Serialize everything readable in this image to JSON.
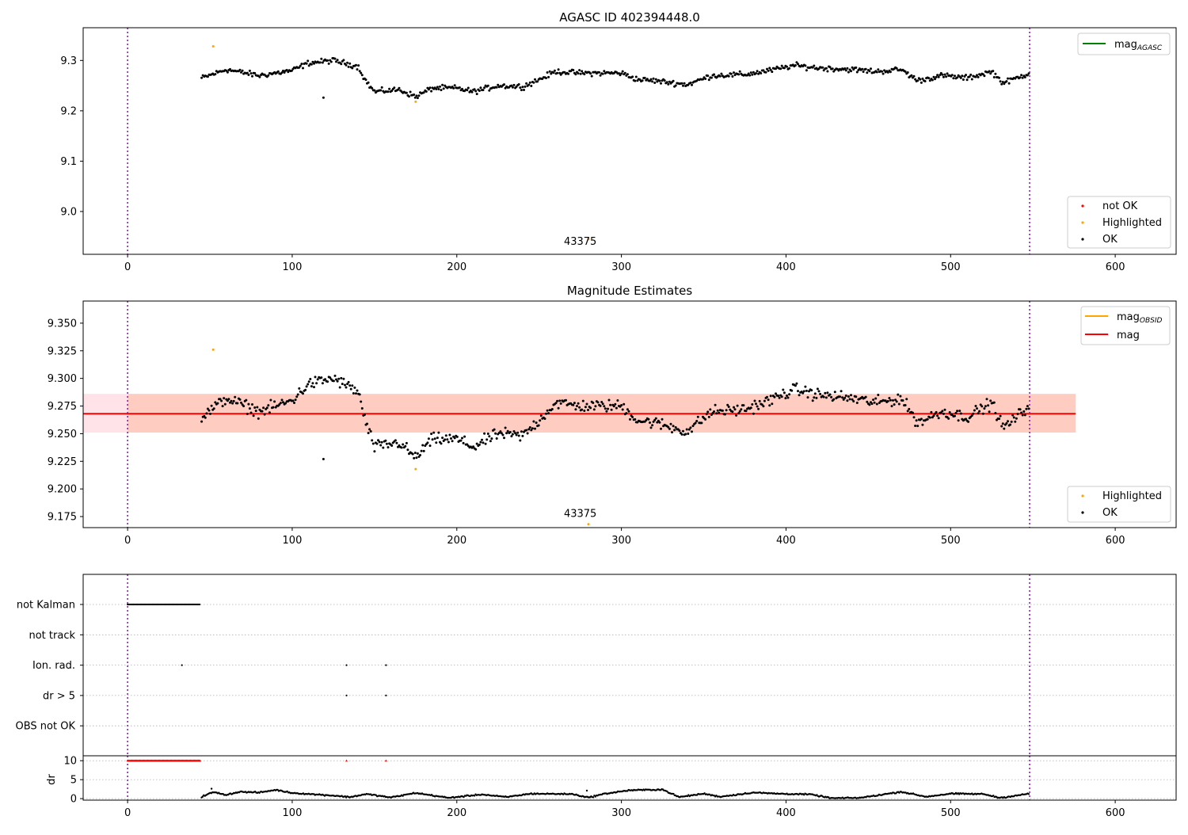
{
  "chart_data": [
    {
      "type": "scatter",
      "title": "AGASC ID 402394448.0",
      "xlim": [
        -27,
        637
      ],
      "ylim": [
        8.915,
        9.365
      ],
      "xticks": [
        0,
        100,
        200,
        300,
        400,
        500,
        600
      ],
      "yticks": [
        9.0,
        9.1,
        9.2,
        9.3
      ],
      "ytick_labels": [
        "9.0",
        "9.1",
        "9.2",
        "9.3"
      ],
      "vlines": [
        0,
        548
      ],
      "line_legend": {
        "label": "mag",
        "subscript": "AGASC",
        "color": "#008000"
      },
      "series": [
        {
          "name": "not OK",
          "color": "#ff0000",
          "points": []
        },
        {
          "name": "Highlighted",
          "color": "#ffa500",
          "points": [
            [
              52,
              9.328
            ],
            [
              175,
              9.218
            ],
            [
              280,
              8.945
            ]
          ]
        },
        {
          "name": "OK",
          "color": "#000000",
          "profile": [
            [
              45,
              9.265
            ],
            [
              60,
              9.282
            ],
            [
              80,
              9.27
            ],
            [
              100,
              9.28
            ],
            [
              110,
              9.295
            ],
            [
              125,
              9.3
            ],
            [
              140,
              9.288
            ],
            [
              145,
              9.258
            ],
            [
              150,
              9.238
            ],
            [
              165,
              9.242
            ],
            [
              175,
              9.228
            ],
            [
              185,
              9.245
            ],
            [
              200,
              9.245
            ],
            [
              210,
              9.238
            ],
            [
              225,
              9.25
            ],
            [
              240,
              9.248
            ],
            [
              250,
              9.262
            ],
            [
              260,
              9.278
            ],
            [
              275,
              9.275
            ],
            [
              300,
              9.275
            ],
            [
              310,
              9.262
            ],
            [
              320,
              9.26
            ],
            [
              340,
              9.252
            ],
            [
              355,
              9.27
            ],
            [
              375,
              9.272
            ],
            [
              390,
              9.28
            ],
            [
              405,
              9.29
            ],
            [
              420,
              9.285
            ],
            [
              440,
              9.282
            ],
            [
              455,
              9.278
            ],
            [
              470,
              9.282
            ],
            [
              480,
              9.26
            ],
            [
              495,
              9.27
            ],
            [
              510,
              9.265
            ],
            [
              525,
              9.278
            ],
            [
              532,
              9.255
            ],
            [
              540,
              9.265
            ],
            [
              548,
              9.275
            ]
          ],
          "x_from": 45,
          "x_to": 548,
          "step": 0.75,
          "noise": 0.008,
          "outliers": [
            [
              119,
              9.226
            ]
          ]
        }
      ],
      "annotations": [
        {
          "x": 275,
          "y": 8.92,
          "text": "43375"
        }
      ],
      "legend": [
        "not OK",
        "Highlighted",
        "OK"
      ]
    },
    {
      "type": "scatter",
      "title": "Magnitude Estimates",
      "xlim": [
        -27,
        637
      ],
      "ylim": [
        9.165,
        9.37
      ],
      "xticks": [
        0,
        100,
        200,
        300,
        400,
        500,
        600
      ],
      "yticks": [
        9.175,
        9.2,
        9.225,
        9.25,
        9.275,
        9.3,
        9.325,
        9.35
      ],
      "ytick_labels": [
        "9.175",
        "9.200",
        "9.225",
        "9.250",
        "9.275",
        "9.300",
        "9.325",
        "9.350"
      ],
      "vlines": [
        0,
        548
      ],
      "mag": {
        "value": 9.268,
        "band_low": 9.251,
        "band_high": 9.286,
        "x_end": 576,
        "color": "#ff0000"
      },
      "line_legend": [
        {
          "label": "mag",
          "subscript": "OBSID",
          "color": "#ffa500"
        },
        {
          "label": "mag",
          "subscript": "",
          "color": "#ff0000"
        }
      ],
      "series": [
        {
          "name": "Highlighted",
          "color": "#ffa500",
          "points": [
            [
              52,
              9.326
            ],
            [
              175,
              9.218
            ],
            [
              280,
              9.168
            ]
          ]
        },
        {
          "name": "OK",
          "color": "#000000",
          "profile": [
            [
              45,
              9.265
            ],
            [
              60,
              9.282
            ],
            [
              80,
              9.27
            ],
            [
              100,
              9.28
            ],
            [
              110,
              9.295
            ],
            [
              125,
              9.3
            ],
            [
              140,
              9.288
            ],
            [
              145,
              9.258
            ],
            [
              150,
              9.238
            ],
            [
              165,
              9.242
            ],
            [
              175,
              9.228
            ],
            [
              185,
              9.245
            ],
            [
              200,
              9.245
            ],
            [
              210,
              9.238
            ],
            [
              225,
              9.25
            ],
            [
              240,
              9.248
            ],
            [
              250,
              9.262
            ],
            [
              260,
              9.278
            ],
            [
              275,
              9.275
            ],
            [
              300,
              9.275
            ],
            [
              310,
              9.262
            ],
            [
              320,
              9.26
            ],
            [
              340,
              9.252
            ],
            [
              355,
              9.27
            ],
            [
              375,
              9.272
            ],
            [
              390,
              9.28
            ],
            [
              405,
              9.29
            ],
            [
              420,
              9.285
            ],
            [
              440,
              9.282
            ],
            [
              455,
              9.278
            ],
            [
              470,
              9.282
            ],
            [
              480,
              9.26
            ],
            [
              495,
              9.27
            ],
            [
              510,
              9.265
            ],
            [
              525,
              9.278
            ],
            [
              532,
              9.255
            ],
            [
              540,
              9.265
            ],
            [
              548,
              9.275
            ]
          ],
          "x_from": 45,
          "x_to": 548,
          "step": 0.75,
          "noise": 0.008,
          "outliers": [
            [
              119,
              9.227
            ]
          ]
        }
      ],
      "annotations": [
        {
          "x": 275,
          "y": 9.171,
          "text": "43375"
        }
      ],
      "legend": [
        "Highlighted",
        "OK"
      ]
    },
    {
      "type": "scatter",
      "title": "",
      "xlim": [
        -27,
        637
      ],
      "vlines": [
        0,
        548
      ],
      "flag_rows": [
        {
          "label": "not Kalman",
          "segments": [
            [
              0,
              44
            ]
          ],
          "points": []
        },
        {
          "label": "not track",
          "segments": [],
          "points": []
        },
        {
          "label": "Ion. rad.",
          "segments": [],
          "points": [
            33,
            133,
            157
          ]
        },
        {
          "label": "dr > 5",
          "segments": [],
          "points": [
            133,
            157
          ]
        },
        {
          "label": "OBS not OK",
          "segments": [],
          "points": []
        }
      ]
    },
    {
      "type": "scatter",
      "title": "",
      "xlim": [
        -27,
        637
      ],
      "ylim": [
        -0.4,
        11.3
      ],
      "ylabel": "dr",
      "xticks": [
        0,
        100,
        200,
        300,
        400,
        500,
        600
      ],
      "yticks": [
        0,
        5,
        10
      ],
      "ytick_labels": [
        "0",
        "5",
        "10"
      ],
      "vlines": [
        0,
        548
      ],
      "series": [
        {
          "name": "dr > 5",
          "color": "#ff0000",
          "x_from": 0,
          "x_to": 44,
          "step": 0.4,
          "y": 10,
          "points": [
            [
              133,
              10
            ],
            [
              157,
              10
            ]
          ]
        },
        {
          "name": "dr",
          "color": "#000000",
          "profile": [
            [
              45,
              0.5
            ],
            [
              52,
              1.7
            ],
            [
              60,
              1.0
            ],
            [
              68,
              1.8
            ],
            [
              80,
              1.6
            ],
            [
              90,
              2.3
            ],
            [
              100,
              1.5
            ],
            [
              125,
              0.8
            ],
            [
              135,
              0.4
            ],
            [
              145,
              1.2
            ],
            [
              160,
              0.3
            ],
            [
              175,
              1.5
            ],
            [
              195,
              0.2
            ],
            [
              215,
              1.1
            ],
            [
              230,
              0.4
            ],
            [
              245,
              1.3
            ],
            [
              270,
              1.2
            ],
            [
              280,
              0.3
            ],
            [
              290,
              1.3
            ],
            [
              305,
              2.2
            ],
            [
              325,
              2.4
            ],
            [
              335,
              0.4
            ],
            [
              350,
              1.3
            ],
            [
              360,
              0.5
            ],
            [
              380,
              1.6
            ],
            [
              395,
              1.3
            ],
            [
              415,
              1.1
            ],
            [
              428,
              0.1
            ],
            [
              445,
              0.2
            ],
            [
              470,
              1.8
            ],
            [
              485,
              0.5
            ],
            [
              500,
              1.3
            ],
            [
              520,
              1.2
            ],
            [
              530,
              0.2
            ],
            [
              548,
              1.3
            ]
          ],
          "x_from": 45,
          "x_to": 548,
          "step": 0.65,
          "noise": 0.25,
          "points": [
            [
              51,
              2.6
            ],
            [
              279,
              2.1
            ]
          ]
        }
      ]
    }
  ]
}
